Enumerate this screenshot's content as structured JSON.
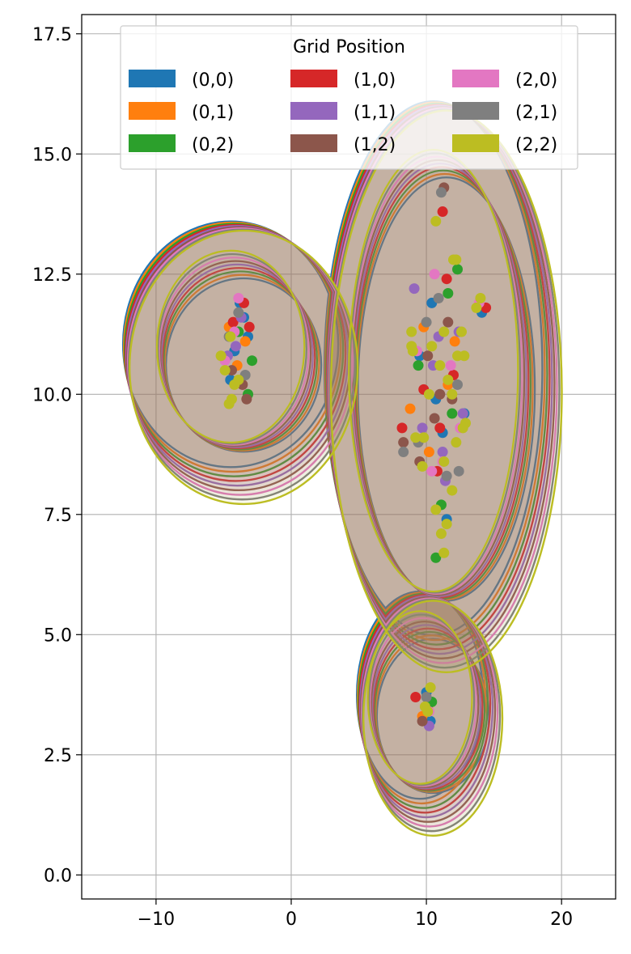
{
  "chart_data": {
    "type": "scatter",
    "title": "",
    "xlabel": "",
    "ylabel": "",
    "xlim": [
      -15.5,
      24
    ],
    "ylim": [
      -0.5,
      17.9
    ],
    "xticks": [
      -10,
      0,
      10,
      20
    ],
    "xtick_labels": [
      "−10",
      "0",
      "10",
      "20"
    ],
    "yticks": [
      0.0,
      2.5,
      5.0,
      7.5,
      10.0,
      12.5,
      15.0,
      17.5
    ],
    "ytick_labels": [
      "0.0",
      "2.5",
      "5.0",
      "7.5",
      "10.0",
      "12.5",
      "15.0",
      "17.5"
    ],
    "grid": true,
    "legend": {
      "title": "Grid Position",
      "location": "upper center",
      "columns": 3
    },
    "overlay": "kernel density contour regions per group (filled outer contour + inner contour lines)",
    "clusters": [
      {
        "name": "left",
        "center": [
          -4,
          10.8
        ]
      },
      {
        "name": "right",
        "center": [
          11,
          10.3
        ]
      },
      {
        "name": "bottom",
        "center": [
          10,
          3.5
        ]
      }
    ],
    "series": [
      {
        "name": "(0,0)",
        "color": "#1f77b4",
        "points": [
          [
            -3.5,
            11.6
          ],
          [
            -4.2,
            10.9
          ],
          [
            -3.2,
            11.2
          ],
          [
            -4.5,
            10.3
          ],
          [
            -3.8,
            11.9
          ],
          [
            9.5,
            10.8
          ],
          [
            11.2,
            9.2
          ],
          [
            10.4,
            11.9
          ],
          [
            12.8,
            9.6
          ],
          [
            10.0,
            3.8
          ],
          [
            10.3,
            3.2
          ],
          [
            11.5,
            7.4
          ],
          [
            14.1,
            11.7
          ],
          [
            10.7,
            9.9
          ]
        ]
      },
      {
        "name": "(0,1)",
        "color": "#ff7f0e",
        "points": [
          [
            -4.0,
            10.6
          ],
          [
            -3.4,
            11.1
          ],
          [
            -4.6,
            11.4
          ],
          [
            9.8,
            11.4
          ],
          [
            11.6,
            10.2
          ],
          [
            10.2,
            8.8
          ],
          [
            12.1,
            11.1
          ],
          [
            10.1,
            3.5
          ],
          [
            9.7,
            3.3
          ],
          [
            8.8,
            9.7
          ]
        ]
      },
      {
        "name": "(0,2)",
        "color": "#2ca02c",
        "points": [
          [
            -3.2,
            10.0
          ],
          [
            -3.9,
            11.3
          ],
          [
            -2.9,
            10.7
          ],
          [
            11.1,
            7.7
          ],
          [
            10.7,
            6.6
          ],
          [
            12.3,
            12.6
          ],
          [
            9.4,
            10.6
          ],
          [
            11.9,
            9.6
          ],
          [
            10.4,
            3.6
          ],
          [
            11.6,
            12.1
          ]
        ]
      },
      {
        "name": "(1,0)",
        "color": "#d62728",
        "points": [
          [
            -3.5,
            11.9
          ],
          [
            -4.3,
            11.5
          ],
          [
            -3.1,
            11.4
          ],
          [
            11.0,
            9.3
          ],
          [
            11.5,
            12.4
          ],
          [
            8.2,
            9.3
          ],
          [
            11.2,
            13.8
          ],
          [
            9.8,
            10.1
          ],
          [
            12.0,
            10.4
          ],
          [
            14.4,
            11.8
          ],
          [
            10.8,
            8.4
          ],
          [
            9.2,
            3.7
          ]
        ]
      },
      {
        "name": "(1,1)",
        "color": "#9467bd",
        "points": [
          [
            -4.1,
            11.0
          ],
          [
            -3.7,
            11.6
          ],
          [
            -4.7,
            10.8
          ],
          [
            10.9,
            11.2
          ],
          [
            9.7,
            9.3
          ],
          [
            11.4,
            8.2
          ],
          [
            12.7,
            9.6
          ],
          [
            9.1,
            12.2
          ],
          [
            10.5,
            10.6
          ],
          [
            10.2,
            3.1
          ],
          [
            11.2,
            8.8
          ],
          [
            12.4,
            11.3
          ]
        ]
      },
      {
        "name": "(1,2)",
        "color": "#8c564b",
        "points": [
          [
            -3.6,
            10.2
          ],
          [
            -4.4,
            10.5
          ],
          [
            -3.3,
            9.9
          ],
          [
            11.3,
            14.3
          ],
          [
            10.1,
            10.8
          ],
          [
            11.9,
            9.9
          ],
          [
            9.5,
            8.6
          ],
          [
            11.6,
            11.5
          ],
          [
            8.3,
            9.0
          ],
          [
            10.6,
            9.5
          ],
          [
            9.7,
            3.2
          ],
          [
            11.0,
            10.0
          ]
        ]
      },
      {
        "name": "(2,0)",
        "color": "#e377c2",
        "points": [
          [
            -4.9,
            10.7
          ],
          [
            -3.9,
            12.0
          ],
          [
            -4.2,
            11.3
          ],
          [
            10.6,
            12.5
          ],
          [
            9.3,
            10.9
          ],
          [
            11.8,
            10.6
          ],
          [
            10.4,
            8.4
          ],
          [
            12.5,
            9.3
          ],
          [
            13.9,
            11.9
          ],
          [
            10.2,
            3.4
          ],
          [
            11.2,
            8.6
          ]
        ]
      },
      {
        "name": "(2,1)",
        "color": "#7f7f7f",
        "points": [
          [
            -3.9,
            11.7
          ],
          [
            -4.6,
            11.2
          ],
          [
            -3.4,
            10.4
          ],
          [
            11.1,
            14.2
          ],
          [
            10.0,
            11.5
          ],
          [
            12.3,
            10.2
          ],
          [
            9.4,
            9.0
          ],
          [
            11.5,
            8.3
          ],
          [
            8.3,
            8.8
          ],
          [
            10.0,
            3.7
          ],
          [
            10.9,
            12.0
          ],
          [
            12.4,
            8.4
          ]
        ]
      },
      {
        "name": "(2,2)",
        "color": "#bcbd22",
        "points": [
          [
            -5.2,
            10.8
          ],
          [
            -4.9,
            10.5
          ],
          [
            -4.4,
            9.9
          ],
          [
            -4.5,
            11.2
          ],
          [
            -3.9,
            10.3
          ],
          [
            -4.2,
            10.2
          ],
          [
            -4.6,
            9.8
          ],
          [
            10.7,
            13.6
          ],
          [
            12.0,
            12.8
          ],
          [
            12.2,
            12.8
          ],
          [
            14.0,
            12.0
          ],
          [
            13.7,
            11.8
          ],
          [
            10.4,
            11.0
          ],
          [
            11.0,
            10.6
          ],
          [
            11.3,
            11.3
          ],
          [
            12.6,
            11.3
          ],
          [
            12.3,
            10.8
          ],
          [
            12.8,
            10.8
          ],
          [
            11.6,
            10.3
          ],
          [
            12.9,
            9.4
          ],
          [
            12.2,
            9.0
          ],
          [
            12.7,
            9.3
          ],
          [
            11.3,
            8.6
          ],
          [
            9.8,
            9.1
          ],
          [
            9.2,
            9.1
          ],
          [
            9.7,
            8.5
          ],
          [
            11.9,
            8.0
          ],
          [
            11.5,
            7.3
          ],
          [
            11.1,
            7.1
          ],
          [
            11.3,
            6.7
          ],
          [
            10.7,
            7.6
          ],
          [
            9.9,
            3.5
          ],
          [
            10.3,
            3.9
          ],
          [
            10.1,
            3.4
          ],
          [
            8.9,
            11.3
          ],
          [
            8.9,
            11.0
          ],
          [
            11.9,
            10.0
          ],
          [
            10.2,
            10.0
          ],
          [
            9.0,
            10.9
          ]
        ]
      }
    ]
  }
}
